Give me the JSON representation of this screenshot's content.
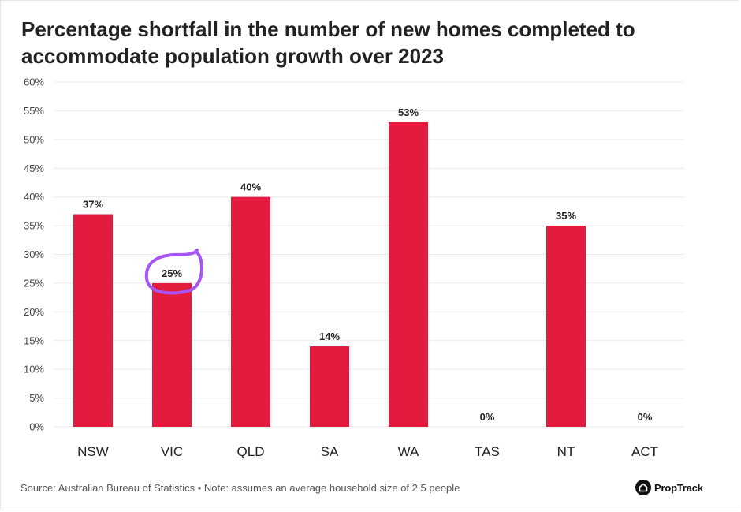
{
  "title": "Percentage shortfall in the number of new homes completed to accommodate population growth over 2023",
  "footer": {
    "source": "Source: Australian Bureau of Statistics • Note: assumes an average household size of 2.5 people",
    "brand": "PropTrack"
  },
  "colors": {
    "bar": "#e31b3e",
    "grid": "#ebebeb",
    "highlight": "#a855f7"
  },
  "chart_data": {
    "type": "bar",
    "title": "Percentage shortfall in the number of new homes completed to accommodate population growth over 2023",
    "xlabel": "",
    "ylabel": "",
    "categories": [
      "NSW",
      "VIC",
      "QLD",
      "SA",
      "WA",
      "TAS",
      "NT",
      "ACT"
    ],
    "values": [
      37,
      25,
      40,
      14,
      53,
      0,
      35,
      0
    ],
    "value_labels": [
      "37%",
      "25%",
      "40%",
      "14%",
      "53%",
      "0%",
      "35%",
      "0%"
    ],
    "ylim": [
      0,
      60
    ],
    "yticks": [
      0,
      5,
      10,
      15,
      20,
      25,
      30,
      35,
      40,
      45,
      50,
      55,
      60
    ],
    "ytick_labels": [
      "0%",
      "5%",
      "10%",
      "15%",
      "20%",
      "25%",
      "30%",
      "35%",
      "40%",
      "45%",
      "50%",
      "55%",
      "60%"
    ],
    "grid": true,
    "legend": "none",
    "annotation": {
      "type": "hand-drawn circle",
      "target": "VIC"
    }
  }
}
